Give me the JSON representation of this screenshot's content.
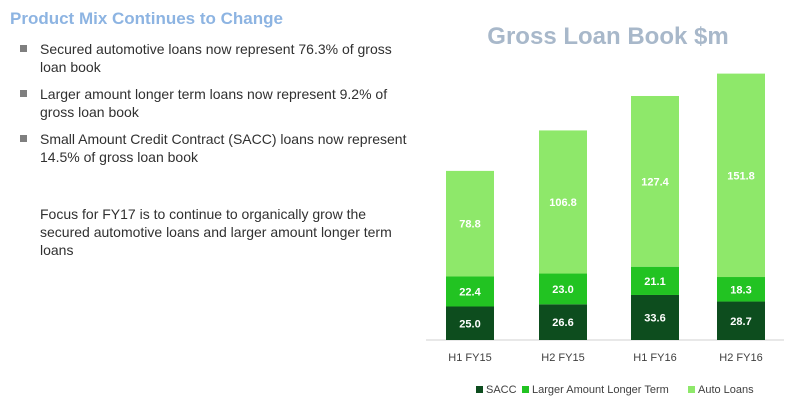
{
  "slide": {
    "heading": "Product Mix Continues to Change",
    "bullets": [
      "Secured automotive loans now represent 76.3% of gross loan book",
      "Larger amount longer term loans now represent 9.2% of gross loan book",
      "Small Amount Credit Contract (SACC) loans now represent 14.5% of gross loan book"
    ],
    "focus_text": "Focus for FY17 is to continue to organically grow the secured automotive loans and larger amount longer term loans"
  },
  "chart_data": {
    "type": "bar",
    "stacked": true,
    "title": "Gross Loan Book $m",
    "categories": [
      "H1 FY15",
      "H2 FY15",
      "H1 FY16",
      "H2 FY16"
    ],
    "series": [
      {
        "name": "SACC",
        "values": [
          25.0,
          26.6,
          33.6,
          28.7
        ],
        "color": "#0d4d1e",
        "label_color": "#ffffff"
      },
      {
        "name": "Larger Amount Longer Term",
        "values": [
          22.4,
          23.0,
          21.1,
          18.3
        ],
        "color": "#22c322",
        "label_color": "#ffffff"
      },
      {
        "name": "Auto Loans",
        "values": [
          78.8,
          106.8,
          127.4,
          151.8
        ],
        "color": "#8ee86a",
        "label_color": "#ffffff"
      }
    ],
    "ylim": [
      0,
      200
    ],
    "grid": false,
    "legend": "bottom",
    "show_data_labels": true
  }
}
